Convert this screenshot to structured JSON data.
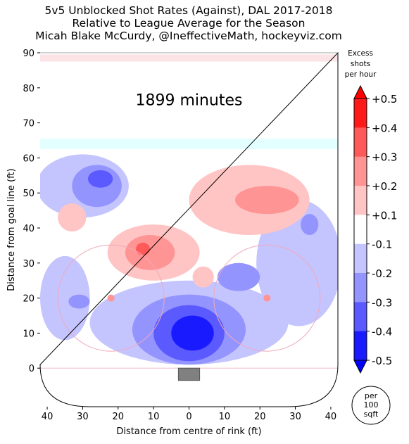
{
  "chart_data": {
    "type": "heatmap",
    "title": [
      "5v5 Unblocked Shot Rates (Against), DAL 2017-2018",
      "Relative to League Average for the Season",
      "Micah Blake McCurdy, @IneffectiveMath, hockeyviz.com"
    ],
    "annotation": "1899 minutes",
    "xlabel": "Distance from centre of rink (ft)",
    "ylabel": "Distance from goal line (ft)",
    "xlim": [
      -42,
      42
    ],
    "ylim": [
      -11,
      90
    ],
    "xticks": [
      -40,
      -30,
      -20,
      -10,
      0,
      10,
      20,
      30,
      40
    ],
    "xtick_labels": [
      "40",
      "30",
      "20",
      "10",
      "0",
      "10",
      "20",
      "30",
      "40"
    ],
    "yticks": [
      0,
      10,
      20,
      30,
      40,
      50,
      60,
      70,
      80,
      90
    ],
    "ytick_labels": [
      "0",
      "10",
      "20",
      "30",
      "40",
      "50",
      "60",
      "70",
      "80",
      "90"
    ],
    "colorbar": {
      "title": [
        "Excess",
        "shots",
        "per hour"
      ],
      "tick_labels": [
        "+0.5",
        "+0.4",
        "+0.3",
        "+0.2",
        "+0.1",
        "-0.1",
        "-0.2",
        "-0.3",
        "-0.4",
        "-0.5"
      ],
      "levels": [
        0.5,
        0.4,
        0.3,
        0.2,
        0.1,
        -0.1,
        -0.2,
        -0.3,
        -0.4,
        -0.5
      ],
      "colors": [
        "#ff1a1a",
        "#ff5a5a",
        "#ff9494",
        "#ffc4c4",
        "#ffffff",
        "#c4c4ff",
        "#9494ff",
        "#5a5aff",
        "#1a1aff"
      ],
      "extend_top_color": "#ff0000",
      "extend_bottom_color": "#0000ff"
    },
    "unit_badge": [
      "per",
      "100",
      "sqft"
    ],
    "regions": [
      {
        "level": -0.1,
        "x": 0,
        "y": 13,
        "rx": 28,
        "ry": 12
      },
      {
        "level": -0.2,
        "x": 0,
        "y": 11,
        "rx": 16,
        "ry": 10
      },
      {
        "level": -0.3,
        "x": 0,
        "y": 10,
        "rx": 10,
        "ry": 8
      },
      {
        "level": -0.4,
        "x": 1,
        "y": 10,
        "rx": 6,
        "ry": 5
      },
      {
        "level": -0.5,
        "x": 1,
        "y": 10,
        "rx": 4,
        "ry": 3.5
      },
      {
        "level": -0.1,
        "x": -30,
        "y": 52,
        "rx": 13,
        "ry": 9
      },
      {
        "level": -0.2,
        "x": -26,
        "y": 52,
        "rx": 7,
        "ry": 6
      },
      {
        "level": -0.3,
        "x": -25,
        "y": 54,
        "rx": 3.5,
        "ry": 2.5
      },
      {
        "level": -0.1,
        "x": -35,
        "y": 20,
        "rx": 7,
        "ry": 12
      },
      {
        "level": -0.2,
        "x": -31,
        "y": 19,
        "rx": 3,
        "ry": 2
      },
      {
        "level": -0.1,
        "x": 31,
        "y": 30,
        "rx": 12,
        "ry": 18
      },
      {
        "level": -0.2,
        "x": 14,
        "y": 26,
        "rx": 6,
        "ry": 4
      },
      {
        "level": -0.2,
        "x": 34,
        "y": 41,
        "rx": 2.5,
        "ry": 3
      },
      {
        "level": 0.1,
        "x": -10,
        "y": 33,
        "rx": 13,
        "ry": 8
      },
      {
        "level": 0.2,
        "x": -11,
        "y": 33,
        "rx": 7,
        "ry": 5
      },
      {
        "level": 0.3,
        "x": -13,
        "y": 34,
        "rx": 2,
        "ry": 1.8
      },
      {
        "level": 0.1,
        "x": 17,
        "y": 48,
        "rx": 17,
        "ry": 10
      },
      {
        "level": 0.2,
        "x": 22,
        "y": 48,
        "rx": 9,
        "ry": 4
      },
      {
        "level": 0.1,
        "x": -33,
        "y": 43,
        "rx": 4,
        "ry": 4
      },
      {
        "level": 0.1,
        "x": 4,
        "y": 26,
        "rx": 3,
        "ry": 3
      },
      {
        "level": 0.2,
        "x": -22,
        "y": 20,
        "rx": 1,
        "ry": 1
      },
      {
        "level": 0.2,
        "x": 22,
        "y": 20,
        "rx": 1,
        "ry": 1
      }
    ]
  }
}
